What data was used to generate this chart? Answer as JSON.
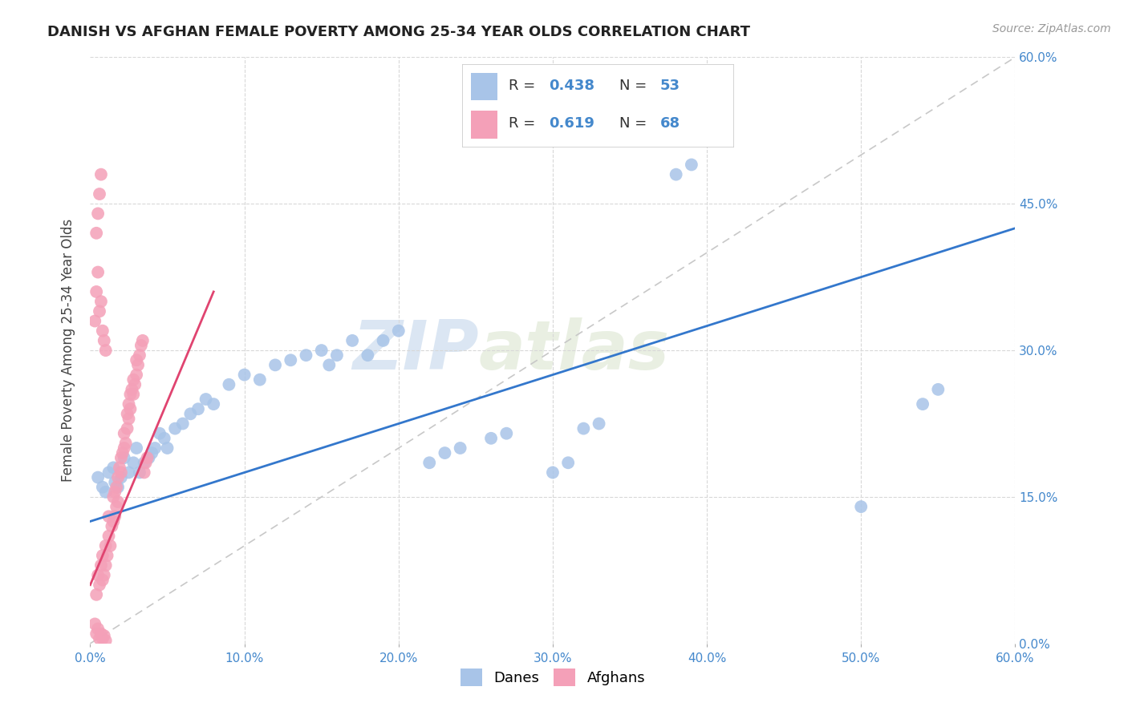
{
  "title": "DANISH VS AFGHAN FEMALE POVERTY AMONG 25-34 YEAR OLDS CORRELATION CHART",
  "source": "Source: ZipAtlas.com",
  "ylabel": "Female Poverty Among 25-34 Year Olds",
  "watermark_zip": "ZIP",
  "watermark_atlas": "atlas",
  "danes_color": "#a8c4e8",
  "afghans_color": "#f4a0b8",
  "danes_line_color": "#3377cc",
  "afghans_line_color": "#e04470",
  "danes_line": [
    0.0,
    0.125,
    0.6,
    0.425
  ],
  "afghans_line": [
    0.0,
    0.06,
    0.08,
    0.36
  ],
  "danes_points": [
    [
      0.005,
      0.17
    ],
    [
      0.008,
      0.16
    ],
    [
      0.01,
      0.155
    ],
    [
      0.012,
      0.175
    ],
    [
      0.015,
      0.18
    ],
    [
      0.016,
      0.165
    ],
    [
      0.018,
      0.16
    ],
    [
      0.02,
      0.17
    ],
    [
      0.022,
      0.19
    ],
    [
      0.025,
      0.175
    ],
    [
      0.028,
      0.185
    ],
    [
      0.03,
      0.2
    ],
    [
      0.032,
      0.175
    ],
    [
      0.035,
      0.185
    ],
    [
      0.038,
      0.19
    ],
    [
      0.04,
      0.195
    ],
    [
      0.042,
      0.2
    ],
    [
      0.045,
      0.215
    ],
    [
      0.048,
      0.21
    ],
    [
      0.05,
      0.2
    ],
    [
      0.055,
      0.22
    ],
    [
      0.06,
      0.225
    ],
    [
      0.065,
      0.235
    ],
    [
      0.07,
      0.24
    ],
    [
      0.075,
      0.25
    ],
    [
      0.08,
      0.245
    ],
    [
      0.09,
      0.265
    ],
    [
      0.1,
      0.275
    ],
    [
      0.11,
      0.27
    ],
    [
      0.12,
      0.285
    ],
    [
      0.13,
      0.29
    ],
    [
      0.14,
      0.295
    ],
    [
      0.15,
      0.3
    ],
    [
      0.155,
      0.285
    ],
    [
      0.16,
      0.295
    ],
    [
      0.17,
      0.31
    ],
    [
      0.18,
      0.295
    ],
    [
      0.19,
      0.31
    ],
    [
      0.2,
      0.32
    ],
    [
      0.22,
      0.185
    ],
    [
      0.23,
      0.195
    ],
    [
      0.24,
      0.2
    ],
    [
      0.26,
      0.21
    ],
    [
      0.27,
      0.215
    ],
    [
      0.3,
      0.175
    ],
    [
      0.31,
      0.185
    ],
    [
      0.32,
      0.22
    ],
    [
      0.33,
      0.225
    ],
    [
      0.38,
      0.48
    ],
    [
      0.39,
      0.49
    ],
    [
      0.5,
      0.14
    ],
    [
      0.54,
      0.245
    ],
    [
      0.55,
      0.26
    ]
  ],
  "afghans_points": [
    [
      0.004,
      0.05
    ],
    [
      0.005,
      0.07
    ],
    [
      0.006,
      0.06
    ],
    [
      0.007,
      0.08
    ],
    [
      0.008,
      0.065
    ],
    [
      0.008,
      0.09
    ],
    [
      0.009,
      0.07
    ],
    [
      0.01,
      0.08
    ],
    [
      0.01,
      0.1
    ],
    [
      0.011,
      0.09
    ],
    [
      0.012,
      0.11
    ],
    [
      0.012,
      0.13
    ],
    [
      0.013,
      0.1
    ],
    [
      0.014,
      0.12
    ],
    [
      0.015,
      0.125
    ],
    [
      0.015,
      0.15
    ],
    [
      0.016,
      0.13
    ],
    [
      0.016,
      0.155
    ],
    [
      0.017,
      0.14
    ],
    [
      0.017,
      0.16
    ],
    [
      0.018,
      0.145
    ],
    [
      0.018,
      0.17
    ],
    [
      0.019,
      0.18
    ],
    [
      0.02,
      0.19
    ],
    [
      0.02,
      0.175
    ],
    [
      0.021,
      0.195
    ],
    [
      0.022,
      0.2
    ],
    [
      0.022,
      0.215
    ],
    [
      0.023,
      0.205
    ],
    [
      0.024,
      0.22
    ],
    [
      0.024,
      0.235
    ],
    [
      0.025,
      0.23
    ],
    [
      0.025,
      0.245
    ],
    [
      0.026,
      0.24
    ],
    [
      0.026,
      0.255
    ],
    [
      0.027,
      0.26
    ],
    [
      0.028,
      0.27
    ],
    [
      0.028,
      0.255
    ],
    [
      0.029,
      0.265
    ],
    [
      0.03,
      0.275
    ],
    [
      0.03,
      0.29
    ],
    [
      0.031,
      0.285
    ],
    [
      0.032,
      0.295
    ],
    [
      0.033,
      0.305
    ],
    [
      0.034,
      0.31
    ],
    [
      0.035,
      0.175
    ],
    [
      0.036,
      0.185
    ],
    [
      0.037,
      0.19
    ],
    [
      0.003,
      0.02
    ],
    [
      0.004,
      0.01
    ],
    [
      0.005,
      0.015
    ],
    [
      0.006,
      0.005
    ],
    [
      0.007,
      0.01
    ],
    [
      0.008,
      0.005
    ],
    [
      0.009,
      0.008
    ],
    [
      0.01,
      0.003
    ],
    [
      0.003,
      0.33
    ],
    [
      0.004,
      0.36
    ],
    [
      0.005,
      0.38
    ],
    [
      0.006,
      0.34
    ],
    [
      0.007,
      0.35
    ],
    [
      0.008,
      0.32
    ],
    [
      0.009,
      0.31
    ],
    [
      0.01,
      0.3
    ],
    [
      0.004,
      0.42
    ],
    [
      0.005,
      0.44
    ],
    [
      0.006,
      0.46
    ],
    [
      0.007,
      0.48
    ]
  ]
}
